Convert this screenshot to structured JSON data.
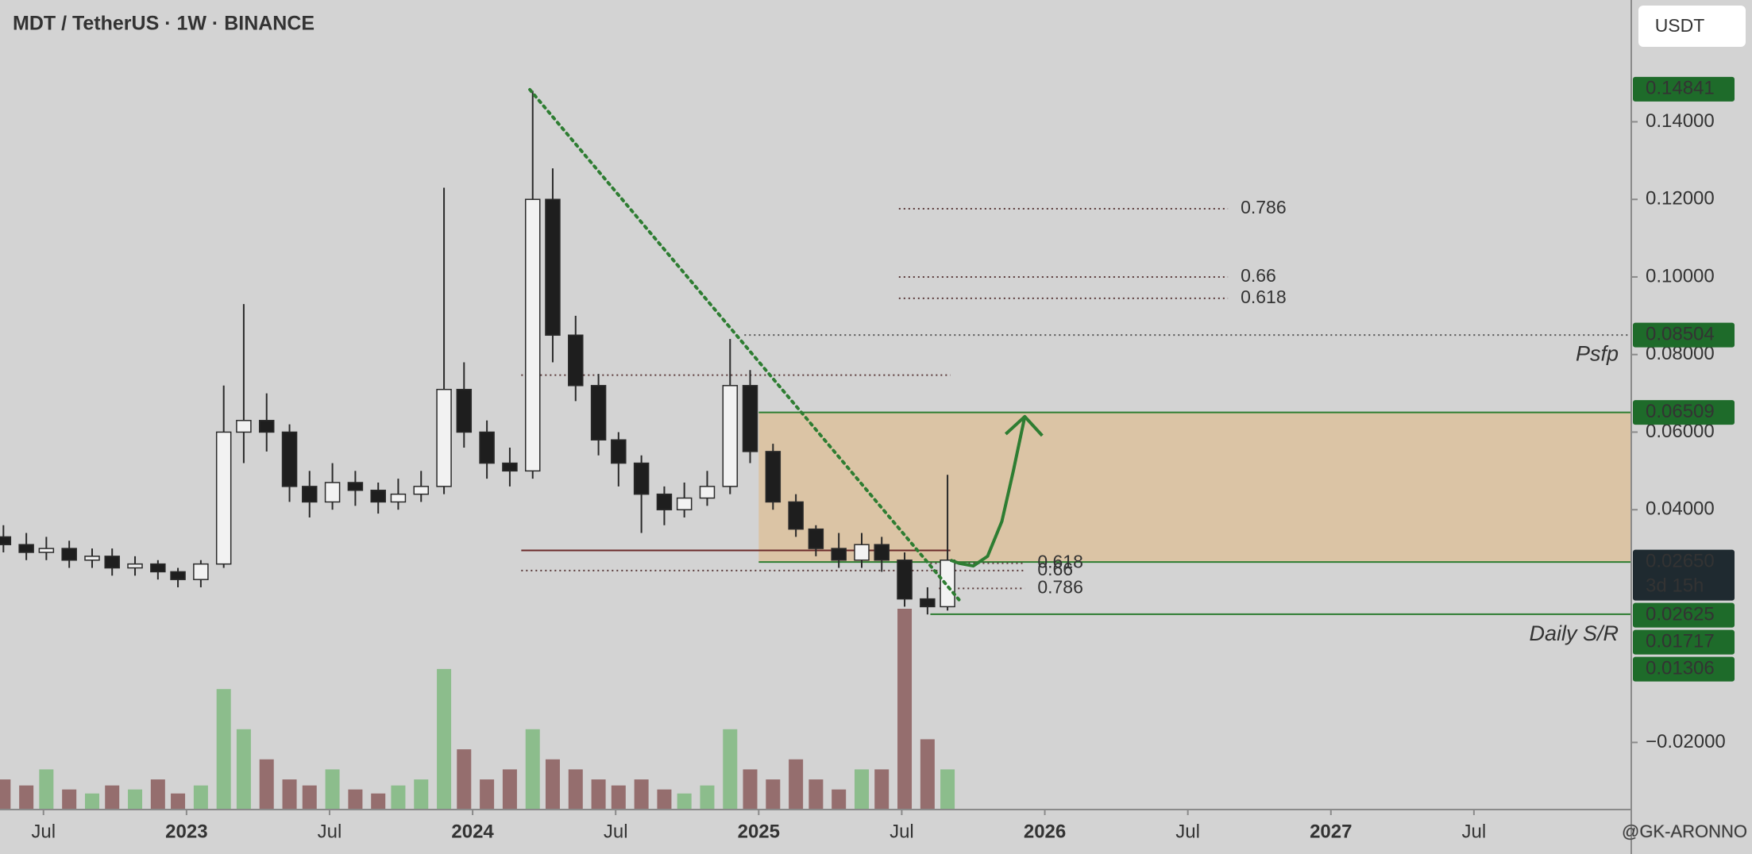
{
  "chart_data": {
    "type": "candlestick",
    "title": "MDT / TetherUS · 1W · BINANCE",
    "currency_button": "USDT",
    "xlim": [
      2022.348,
      2028.05
    ],
    "ylim": [
      -0.0373,
      0.1714
    ],
    "xticks": [
      {
        "value": 2022.5,
        "label": "Jul"
      },
      2023,
      {
        "value": 2023.5,
        "label": "Jul"
      },
      2024,
      {
        "value": 2024.5,
        "label": "Jul"
      },
      2025,
      {
        "value": 2025.5,
        "label": "Jul"
      },
      2026,
      {
        "value": 2026.5,
        "label": "Jul"
      },
      2027,
      {
        "value": 2027.5,
        "label": "Jul"
      }
    ],
    "yticks": [
      {
        "value": 0.14,
        "label": "0.14000"
      },
      {
        "value": 0.12,
        "label": "0.12000"
      },
      {
        "value": 0.1,
        "label": "0.10000"
      },
      {
        "value": 0.08,
        "label": "0.08000"
      },
      {
        "value": 0.06,
        "label": "0.06000"
      },
      {
        "value": 0.04,
        "label": "0.04000"
      },
      {
        "value": -0.02,
        "label": "−0.02000"
      }
    ],
    "candles": {
      "up_color": "#f2f2f2",
      "down_color": "#1e1e1e",
      "x": [
        2022.36,
        2022.44,
        2022.51,
        2022.59,
        2022.67,
        2022.74,
        2022.82,
        2022.9,
        2022.97,
        2023.05,
        2023.13,
        2023.2,
        2023.28,
        2023.36,
        2023.43,
        2023.51,
        2023.59,
        2023.67,
        2023.74,
        2023.82,
        2023.9,
        2023.97,
        2024.05,
        2024.13,
        2024.21,
        2024.28,
        2024.36,
        2024.44,
        2024.51,
        2024.59,
        2024.67,
        2024.74,
        2024.82,
        2024.9,
        2024.97,
        2025.05,
        2025.13,
        2025.2,
        2025.28,
        2025.36,
        2025.43,
        2025.51,
        2025.59,
        2025.66
      ],
      "open": [
        0.033,
        0.031,
        0.029,
        0.03,
        0.027,
        0.028,
        0.025,
        0.026,
        0.024,
        0.022,
        0.026,
        0.06,
        0.063,
        0.06,
        0.046,
        0.042,
        0.047,
        0.045,
        0.042,
        0.044,
        0.046,
        0.071,
        0.06,
        0.052,
        0.05,
        0.12,
        0.085,
        0.072,
        0.058,
        0.052,
        0.044,
        0.04,
        0.043,
        0.046,
        0.072,
        0.055,
        0.042,
        0.035,
        0.03,
        0.027,
        0.031,
        0.027,
        0.017,
        0.015
      ],
      "high": [
        0.036,
        0.034,
        0.033,
        0.032,
        0.03,
        0.03,
        0.028,
        0.027,
        0.025,
        0.027,
        0.072,
        0.093,
        0.07,
        0.062,
        0.05,
        0.052,
        0.05,
        0.047,
        0.048,
        0.05,
        0.123,
        0.078,
        0.063,
        0.056,
        0.148,
        0.128,
        0.09,
        0.075,
        0.06,
        0.054,
        0.046,
        0.047,
        0.05,
        0.084,
        0.076,
        0.057,
        0.044,
        0.036,
        0.034,
        0.034,
        0.033,
        0.029,
        0.02,
        0.049
      ],
      "low": [
        0.029,
        0.027,
        0.027,
        0.025,
        0.025,
        0.023,
        0.023,
        0.022,
        0.02,
        0.02,
        0.025,
        0.052,
        0.055,
        0.042,
        0.038,
        0.04,
        0.041,
        0.039,
        0.04,
        0.042,
        0.044,
        0.056,
        0.048,
        0.046,
        0.048,
        0.078,
        0.068,
        0.054,
        0.046,
        0.034,
        0.036,
        0.038,
        0.041,
        0.044,
        0.052,
        0.04,
        0.033,
        0.028,
        0.025,
        0.025,
        0.024,
        0.015,
        0.013,
        0.014
      ],
      "close": [
        0.031,
        0.029,
        0.03,
        0.027,
        0.028,
        0.025,
        0.026,
        0.024,
        0.022,
        0.026,
        0.06,
        0.063,
        0.06,
        0.046,
        0.042,
        0.047,
        0.045,
        0.042,
        0.044,
        0.046,
        0.071,
        0.06,
        0.052,
        0.05,
        0.12,
        0.085,
        0.072,
        0.058,
        0.052,
        0.044,
        0.04,
        0.043,
        0.046,
        0.072,
        0.055,
        0.042,
        0.035,
        0.03,
        0.027,
        0.031,
        0.027,
        0.017,
        0.015,
        0.027
      ]
    },
    "volume": {
      "up_color": "#7fb87f",
      "down_color": "#8a5c5c",
      "vlim": [
        0,
        100
      ],
      "values": [
        15,
        12,
        20,
        10,
        8,
        12,
        10,
        15,
        8,
        12,
        60,
        40,
        25,
        15,
        12,
        20,
        10,
        8,
        12,
        15,
        70,
        30,
        15,
        20,
        40,
        25,
        20,
        15,
        12,
        15,
        10,
        8,
        12,
        40,
        20,
        15,
        25,
        15,
        10,
        20,
        20,
        100,
        35,
        20
      ]
    },
    "zone": {
      "x": [
        2025.0,
        2028.05
      ],
      "y": [
        0.0265,
        0.06509
      ],
      "color": "#dcc19c",
      "border": "#2e7d32"
    },
    "levels": [
      {
        "price": 0.1176,
        "label": "0.786",
        "x": [
          2025.49,
          2026.64
        ],
        "style": "dotted",
        "color": "#5a3a3a"
      },
      {
        "price": 0.1,
        "label": "0.66",
        "x": [
          2025.49,
          2026.64
        ],
        "style": "dotted",
        "color": "#5a3a3a"
      },
      {
        "price": 0.0945,
        "label": "0.618",
        "x": [
          2025.49,
          2026.64
        ],
        "style": "dotted",
        "color": "#5a3a3a"
      },
      {
        "price": 0.08504,
        "x": [
          2024.95,
          2028.05
        ],
        "style": "dotted",
        "color": "#555555"
      },
      {
        "price": 0.0747,
        "x": [
          2024.17,
          2025.67
        ],
        "style": "dotted",
        "color": "#5a3a3a"
      },
      {
        "price": 0.0295,
        "x": [
          2024.17,
          2025.67
        ],
        "style": "solid",
        "color": "#6b2a2a"
      },
      {
        "price": 0.0262,
        "label": "0.618",
        "x": [
          2025.6,
          2025.93
        ],
        "style": "dotted",
        "color": "#5a3a3a"
      },
      {
        "price": 0.0243,
        "label": "0.66",
        "x": [
          2024.17,
          2025.93
        ],
        "style": "dotted",
        "color": "#5a3a3a"
      },
      {
        "price": 0.0197,
        "label": "0.786",
        "x": [
          2025.63,
          2025.93
        ],
        "style": "dotted",
        "color": "#5a3a3a"
      },
      {
        "price": 0.01306,
        "x": [
          2025.6,
          2028.05
        ],
        "style": "solid",
        "color": "#2e7d32"
      }
    ],
    "trendline": {
      "x": [
        2024.2,
        2025.7
      ],
      "y": [
        0.1483,
        0.0168
      ],
      "color": "#2e7d32"
    },
    "projection": {
      "x": [
        2025.67,
        2025.7,
        2025.75,
        2025.8,
        2025.85,
        2025.89,
        2025.93
      ],
      "y": [
        0.027,
        0.0262,
        0.0255,
        0.028,
        0.037,
        0.05,
        0.064
      ],
      "color": "#2e7d32"
    },
    "annotations": [
      {
        "text": "Psfp",
        "price": 0.0799
      },
      {
        "text": "Daily S/R",
        "price": 0.0077
      }
    ],
    "price_tags": [
      {
        "value": 0.14841,
        "label": "0.14841",
        "color": "#1e6b2a"
      },
      {
        "value": 0.08504,
        "label": "0.08504",
        "color": "#1e6b2a"
      },
      {
        "value": 0.06509,
        "label": "0.06509",
        "color": "#1e6b2a"
      },
      {
        "value": 0.0265,
        "label": "0.02650",
        "color": "#1f2a30"
      },
      {
        "value": 0.02625,
        "label": "0.02625",
        "color": "#1e6b2a"
      },
      {
        "value": 0.01717,
        "label": "0.01717",
        "color": "#1e6b2a"
      },
      {
        "value": 0.01306,
        "label": "0.01306",
        "color": "#1e6b2a"
      }
    ],
    "countdown": "3d 15h",
    "watermark": "@GK-ARONNO"
  }
}
